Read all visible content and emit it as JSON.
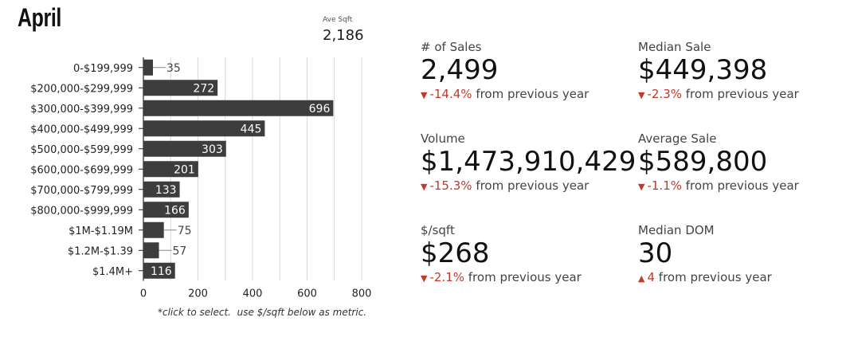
{
  "header": {
    "title": "April",
    "sqft_label": "Ave Sqft",
    "sqft_value": "2,186"
  },
  "chart_data": {
    "type": "bar",
    "orientation": "horizontal",
    "categories": [
      "0-$199,999",
      "$200,000-$299,999",
      "$300,000-$399,999",
      "$400,000-$499,999",
      "$500,000-$599,999",
      "$600,000-$699,999",
      "$700,000-$799,999",
      "$800,000-$999,999",
      "$1M-$1.19M",
      "$1.2M-$1.39",
      "$1.4M+"
    ],
    "values": [
      35,
      272,
      696,
      445,
      303,
      201,
      133,
      166,
      75,
      57,
      116
    ],
    "xlim": [
      0,
      800
    ],
    "xticks": [
      0,
      200,
      400,
      600,
      800
    ],
    "grid": true,
    "bar_color": "#3d3d3d"
  },
  "footnote": "*click to select.  use $/sqft below as metric.",
  "stats": [
    {
      "label": "# of Sales",
      "value": "2,499",
      "direction": "down",
      "delta": "-14.4%",
      "suffix": " from previous year"
    },
    {
      "label": "Median Sale",
      "value": "$449,398",
      "direction": "down",
      "delta": "-2.3%",
      "suffix": " from previous year"
    },
    {
      "label": "Volume",
      "value": "$1,473,910,429",
      "direction": "down",
      "delta": "-15.3%",
      "suffix": " from previous year"
    },
    {
      "label": "Average Sale",
      "value": "$589,800",
      "direction": "down",
      "delta": "-1.1%",
      "suffix": " from previous year"
    },
    {
      "label": "$/sqft",
      "value": "$268",
      "direction": "down",
      "delta": "-2.1%",
      "suffix": " from previous year"
    },
    {
      "label": "Median DOM",
      "value": "30",
      "direction": "up",
      "delta": "4",
      "suffix": " from previous year"
    }
  ],
  "colors": {
    "negative": "#c0392b",
    "bar": "#3d3d3d"
  },
  "icons": {
    "down": "arrow-down-icon",
    "up": "arrow-up-icon"
  }
}
